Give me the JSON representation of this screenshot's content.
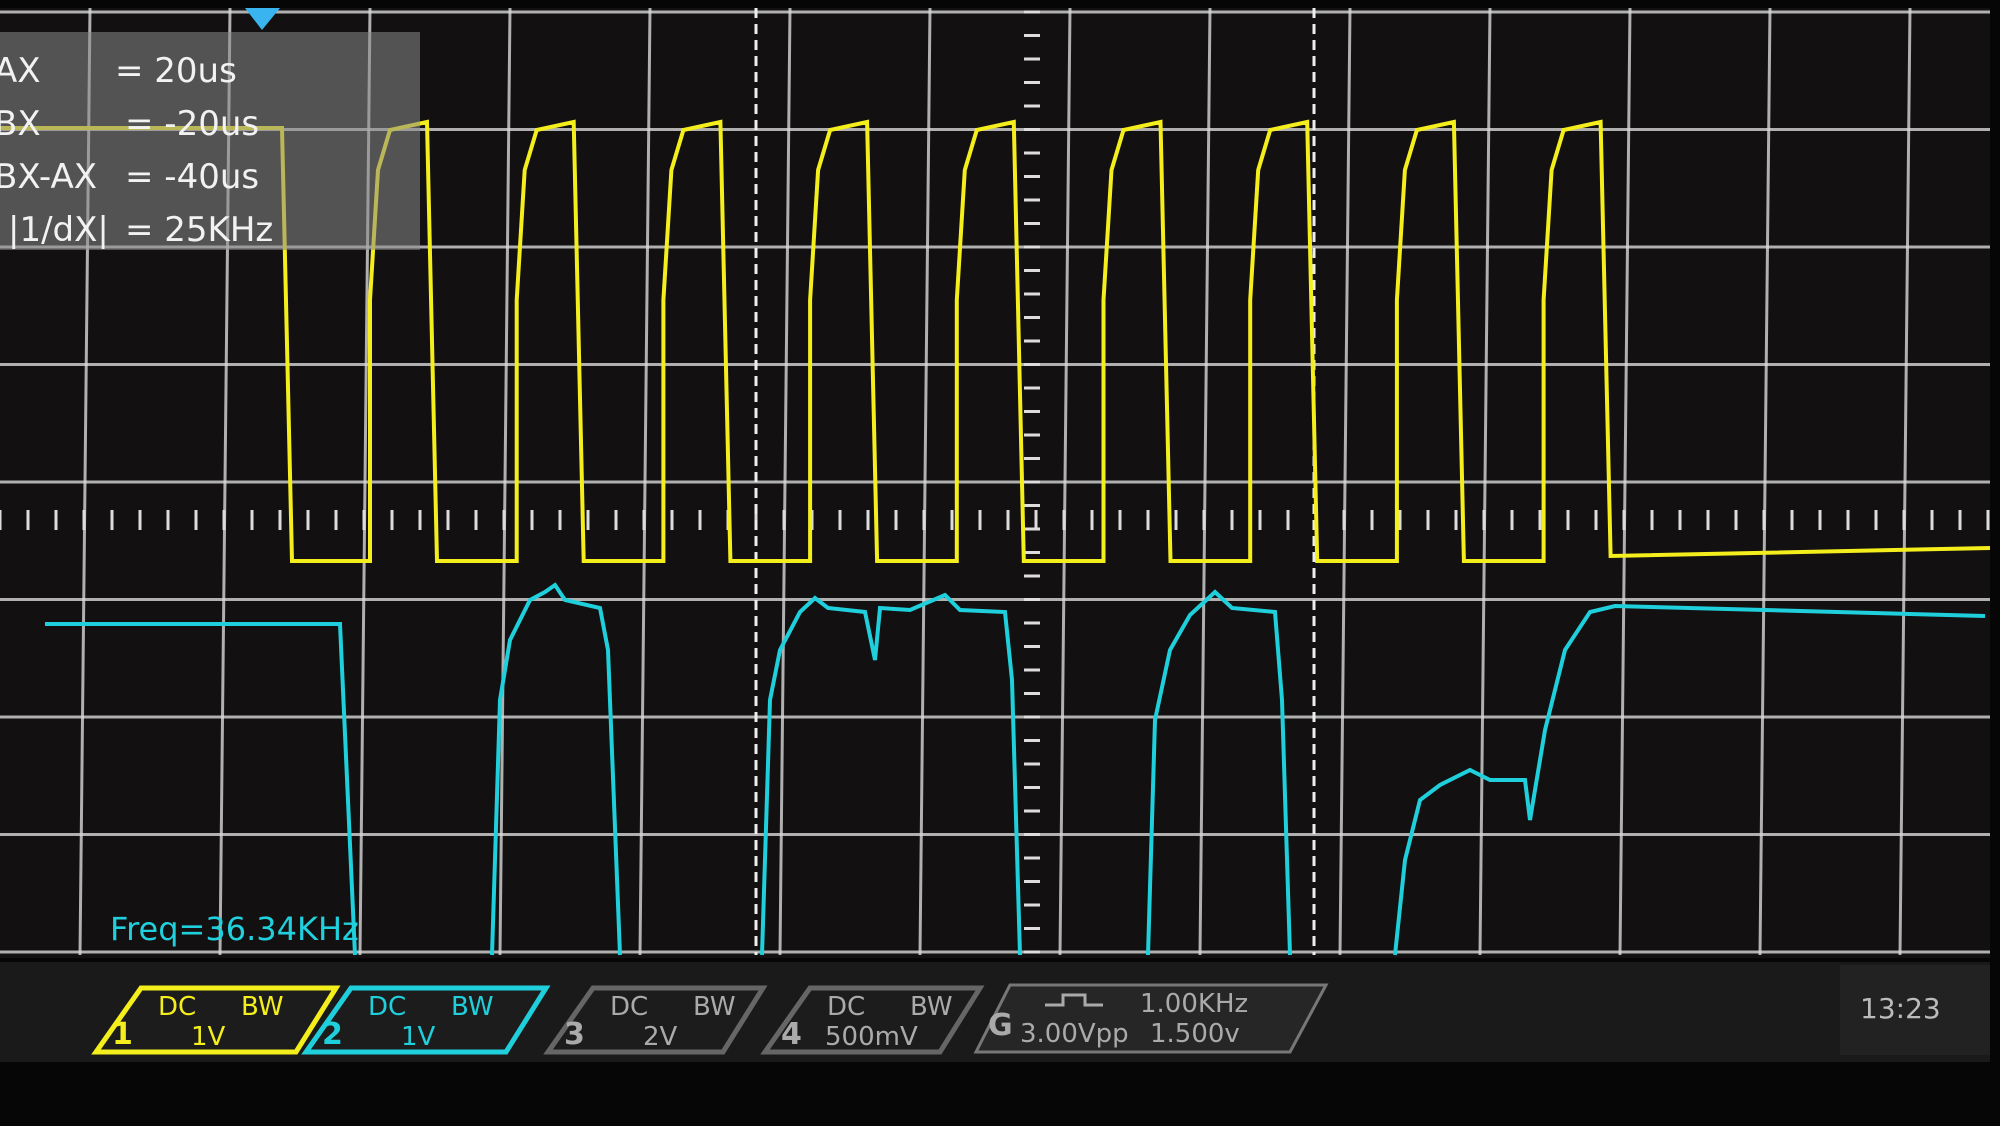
{
  "cursor_readout": [
    {
      "label": "AX",
      "value": "= 20us"
    },
    {
      "label": "BX",
      "value": "= -20us"
    },
    {
      "label": "BX-AX",
      "value": "= -40us"
    },
    {
      "label": "|1/dX|",
      "value": "= 25KHz"
    }
  ],
  "measurement": "Freq=36.34KHz",
  "channels": [
    {
      "number": "1",
      "coupling": "DC",
      "bandwidth": "BW",
      "scale": "1V"
    },
    {
      "number": "2",
      "coupling": "DC",
      "bandwidth": "BW",
      "scale": "1V"
    },
    {
      "number": "3",
      "coupling": "DC",
      "bandwidth": "BW",
      "scale": "2V"
    },
    {
      "number": "4",
      "coupling": "DC",
      "bandwidth": "BW",
      "scale": "500mV"
    }
  ],
  "generator": {
    "label": "G",
    "frequency": "1.00KHz",
    "amplitude": "3.00Vpp",
    "offset": "1.500v"
  },
  "clock": "13:23"
}
